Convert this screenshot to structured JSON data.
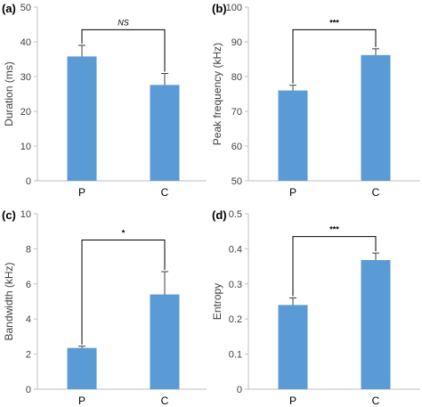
{
  "colors": {
    "bar": "#5b9bd5",
    "axis": "#bfbfbf",
    "error": "#404040",
    "bracket": "#000000"
  },
  "chart_data": [
    {
      "type": "bar",
      "panel": "(a)",
      "categories": [
        "P",
        "C"
      ],
      "values": [
        35.8,
        27.6
      ],
      "errors": [
        3.2,
        3.3
      ],
      "ylabel": "Duration (ms)",
      "ylim": [
        0,
        50
      ],
      "yticks": [
        "0",
        "10",
        "20",
        "30",
        "40",
        "50"
      ],
      "significance": "NS",
      "sig_y": 43.5,
      "grid": false
    },
    {
      "type": "bar",
      "panel": "(b)",
      "categories": [
        "P",
        "C"
      ],
      "values": [
        76.0,
        86.2
      ],
      "errors": [
        1.5,
        1.8
      ],
      "ylabel": "Peak frequency (kHz)",
      "ylim": [
        50,
        100
      ],
      "yticks": [
        "50",
        "60",
        "70",
        "80",
        "90",
        "100"
      ],
      "significance": "***",
      "sig_y": 93.5,
      "grid": false
    },
    {
      "type": "bar",
      "panel": "(c)",
      "categories": [
        "P",
        "C"
      ],
      "values": [
        2.35,
        5.4
      ],
      "errors": [
        0.1,
        1.3
      ],
      "ylabel": "Bandwidth (kHz)",
      "ylim": [
        0,
        10
      ],
      "yticks": [
        "0",
        "2",
        "4",
        "6",
        "8",
        "10"
      ],
      "significance": "*",
      "sig_y": 8.5,
      "grid": false
    },
    {
      "type": "bar",
      "panel": "(d)",
      "categories": [
        "P",
        "C"
      ],
      "values": [
        0.24,
        0.368
      ],
      "errors": [
        0.02,
        0.02
      ],
      "ylabel": "Entropy",
      "ylim": [
        0,
        0.5
      ],
      "yticks": [
        "0",
        "0.1",
        "0.2",
        "0.3",
        "0.4",
        "0.5"
      ],
      "significance": "***",
      "sig_y": 0.435,
      "grid": false
    }
  ]
}
